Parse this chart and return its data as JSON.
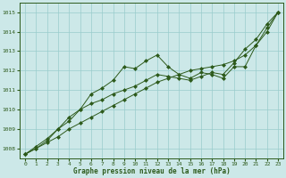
{
  "background_color": "#cce8e8",
  "grid_color": "#99cccc",
  "line_color": "#2d5a1b",
  "xlabel": "Graphe pression niveau de la mer (hPa)",
  "xlim": [
    -0.5,
    23.5
  ],
  "ylim": [
    1007.5,
    1015.5
  ],
  "yticks": [
    1008,
    1009,
    1010,
    1011,
    1012,
    1013,
    1014,
    1015
  ],
  "xticks": [
    0,
    1,
    2,
    3,
    4,
    5,
    6,
    7,
    8,
    9,
    10,
    11,
    12,
    13,
    14,
    15,
    16,
    17,
    18,
    19,
    20,
    21,
    22,
    23
  ],
  "series1": {
    "x": [
      0,
      1,
      2,
      3,
      4,
      5,
      6,
      7,
      8,
      9,
      10,
      11,
      12,
      13,
      14,
      15,
      16,
      17,
      18,
      19,
      20,
      21,
      22,
      23
    ],
    "y": [
      1007.7,
      1008.0,
      1008.4,
      1009.0,
      1009.4,
      1010.0,
      1010.8,
      1011.1,
      1011.5,
      1012.2,
      1012.1,
      1012.5,
      1012.8,
      1012.2,
      1011.8,
      1011.6,
      1011.9,
      1011.8,
      1011.6,
      1012.2,
      1012.2,
      1013.3,
      1014.2,
      1015.0
    ]
  },
  "series2": {
    "x": [
      0,
      1,
      2,
      3,
      4,
      5,
      6,
      7,
      8,
      9,
      10,
      11,
      12,
      13,
      14,
      15,
      16,
      17,
      18,
      19,
      20,
      21,
      22,
      23
    ],
    "y": [
      1007.7,
      1008.0,
      1008.3,
      1008.6,
      1009.0,
      1009.3,
      1009.6,
      1009.9,
      1010.2,
      1010.5,
      1010.8,
      1011.1,
      1011.4,
      1011.6,
      1011.8,
      1012.0,
      1012.1,
      1012.2,
      1012.3,
      1012.5,
      1012.8,
      1013.3,
      1014.0,
      1015.0
    ]
  },
  "series3": {
    "x": [
      0,
      1,
      2,
      3,
      4,
      5,
      6,
      7,
      8,
      9,
      10,
      11,
      12,
      13,
      14,
      15,
      16,
      17,
      18,
      19,
      20,
      21,
      22,
      23
    ],
    "y": [
      1007.7,
      1008.1,
      1008.5,
      1009.0,
      1009.6,
      1010.0,
      1010.3,
      1010.5,
      1010.8,
      1011.0,
      1011.2,
      1011.5,
      1011.8,
      1011.7,
      1011.6,
      1011.5,
      1011.7,
      1011.9,
      1011.8,
      1012.4,
      1013.1,
      1013.6,
      1014.4,
      1015.0
    ]
  }
}
